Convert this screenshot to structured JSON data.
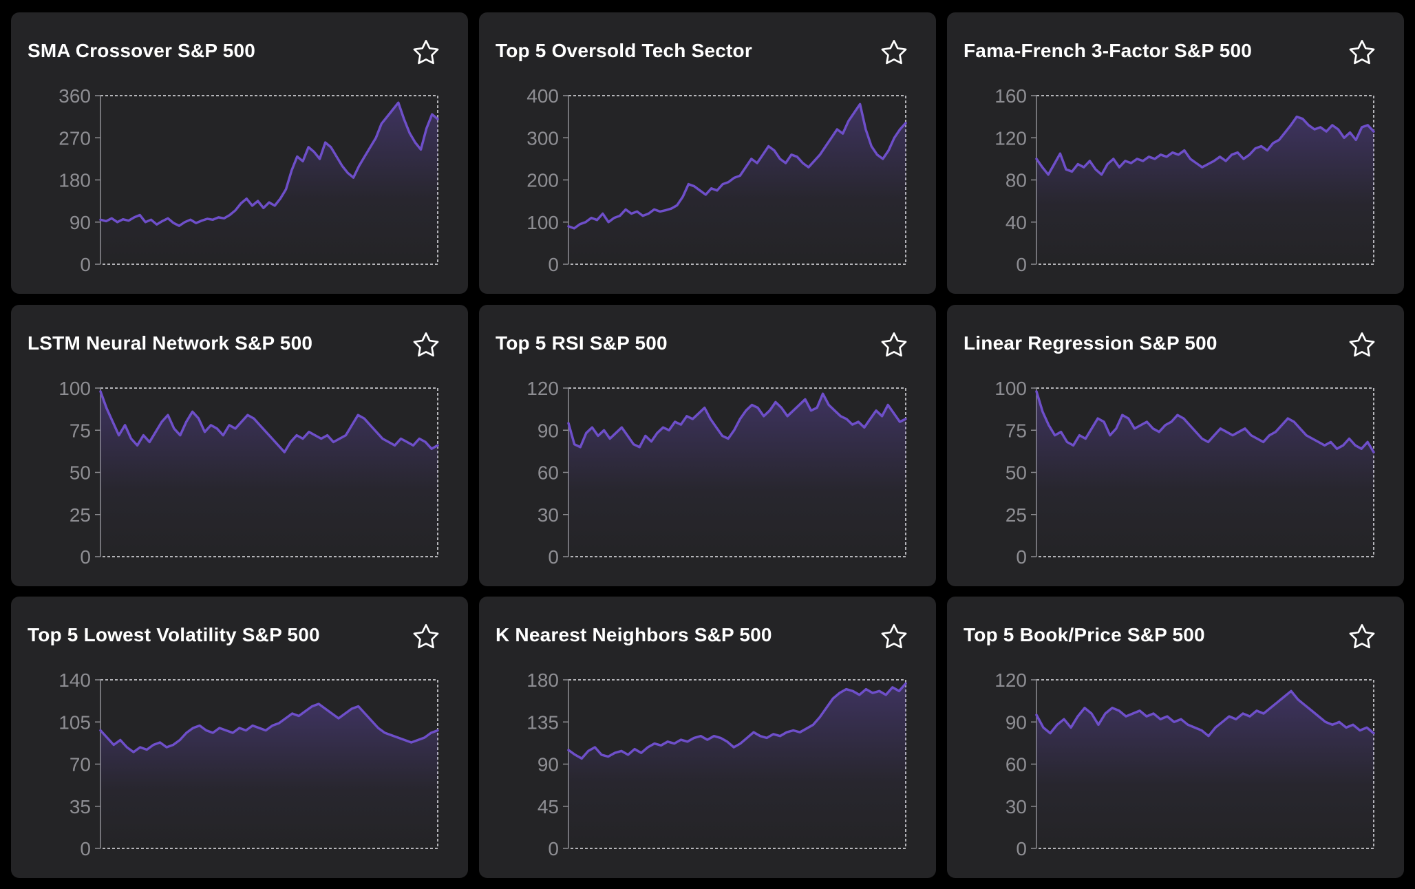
{
  "colors": {
    "background": "#000000",
    "card": "#242426",
    "line": "#6e4fc9",
    "axis": "#8e8e93",
    "title": "#ffffff"
  },
  "icons": {
    "favorite": "star-icon"
  },
  "cards": [
    {
      "title": "SMA Crossover S&P 500",
      "chart_data": {
        "type": "area",
        "ylim": [
          0,
          360
        ],
        "yticks": [
          0,
          90,
          180,
          270,
          360
        ],
        "grid": false,
        "values": [
          95,
          92,
          98,
          90,
          96,
          93,
          100,
          105,
          90,
          95,
          85,
          92,
          98,
          88,
          82,
          90,
          95,
          88,
          93,
          97,
          95,
          100,
          98,
          105,
          115,
          130,
          140,
          125,
          135,
          120,
          132,
          125,
          140,
          160,
          200,
          230,
          220,
          250,
          240,
          225,
          260,
          250,
          230,
          210,
          195,
          185,
          210,
          230,
          250,
          270,
          300,
          315,
          330,
          345,
          310,
          280,
          260,
          245,
          290,
          320,
          310
        ]
      }
    },
    {
      "title": "Top 5 Oversold Tech Sector",
      "chart_data": {
        "type": "area",
        "ylim": [
          0,
          400
        ],
        "yticks": [
          0,
          100,
          200,
          300,
          400
        ],
        "grid": false,
        "values": [
          90,
          85,
          95,
          100,
          110,
          105,
          120,
          100,
          110,
          115,
          130,
          120,
          125,
          115,
          120,
          130,
          125,
          128,
          132,
          140,
          160,
          190,
          185,
          175,
          165,
          180,
          175,
          190,
          195,
          205,
          210,
          230,
          250,
          240,
          260,
          280,
          270,
          250,
          240,
          260,
          255,
          240,
          230,
          245,
          260,
          280,
          300,
          320,
          310,
          340,
          360,
          380,
          320,
          280,
          260,
          250,
          270,
          300,
          320,
          335
        ]
      }
    },
    {
      "title": "Fama-French 3-Factor S&P 500",
      "chart_data": {
        "type": "area",
        "ylim": [
          0,
          160
        ],
        "yticks": [
          0,
          40,
          80,
          120,
          160
        ],
        "grid": false,
        "values": [
          100,
          92,
          85,
          95,
          105,
          90,
          88,
          95,
          92,
          98,
          90,
          85,
          95,
          100,
          92,
          98,
          96,
          100,
          98,
          102,
          100,
          104,
          102,
          106,
          104,
          108,
          100,
          96,
          92,
          95,
          98,
          102,
          98,
          104,
          106,
          100,
          104,
          110,
          112,
          108,
          115,
          118,
          125,
          132,
          140,
          138,
          132,
          128,
          130,
          126,
          132,
          128,
          120,
          125,
          118,
          130,
          132,
          126
        ]
      }
    },
    {
      "title": "LSTM Neural Network S&P 500",
      "chart_data": {
        "type": "area",
        "ylim": [
          0,
          100
        ],
        "yticks": [
          0,
          25,
          50,
          75,
          100
        ],
        "grid": false,
        "values": [
          98,
          88,
          80,
          72,
          78,
          70,
          66,
          72,
          68,
          74,
          80,
          84,
          76,
          72,
          80,
          86,
          82,
          74,
          78,
          76,
          72,
          78,
          76,
          80,
          84,
          82,
          78,
          74,
          70,
          66,
          62,
          68,
          72,
          70,
          74,
          72,
          70,
          72,
          68,
          70,
          72,
          78,
          84,
          82,
          78,
          74,
          70,
          68,
          66,
          70,
          68,
          66,
          70,
          68,
          64,
          66
        ]
      }
    },
    {
      "title": "Top 5 RSI S&P 500",
      "chart_data": {
        "type": "area",
        "ylim": [
          0,
          120
        ],
        "yticks": [
          0,
          30,
          60,
          90,
          120
        ],
        "grid": false,
        "values": [
          95,
          80,
          78,
          88,
          92,
          86,
          90,
          84,
          88,
          92,
          86,
          80,
          78,
          86,
          82,
          88,
          92,
          90,
          96,
          94,
          100,
          98,
          102,
          106,
          98,
          92,
          86,
          84,
          90,
          98,
          104,
          108,
          106,
          100,
          104,
          110,
          106,
          100,
          104,
          108,
          112,
          104,
          106,
          116,
          108,
          104,
          100,
          98,
          94,
          96,
          92,
          98,
          104,
          100,
          108,
          102,
          96,
          98
        ]
      }
    },
    {
      "title": "Linear Regression S&P 500",
      "chart_data": {
        "type": "area",
        "ylim": [
          0,
          100
        ],
        "yticks": [
          0,
          25,
          50,
          75,
          100
        ],
        "grid": false,
        "values": [
          98,
          86,
          78,
          72,
          74,
          68,
          66,
          72,
          70,
          76,
          82,
          80,
          72,
          76,
          84,
          82,
          76,
          78,
          80,
          76,
          74,
          78,
          80,
          84,
          82,
          78,
          74,
          70,
          68,
          72,
          76,
          74,
          72,
          74,
          76,
          72,
          70,
          68,
          72,
          74,
          78,
          82,
          80,
          76,
          72,
          70,
          68,
          66,
          68,
          64,
          66,
          70,
          66,
          64,
          68,
          62
        ]
      }
    },
    {
      "title": "Top 5 Lowest Volatility S&P 500",
      "chart_data": {
        "type": "area",
        "ylim": [
          0,
          140
        ],
        "yticks": [
          0,
          35,
          70,
          105,
          140
        ],
        "grid": false,
        "values": [
          98,
          92,
          86,
          90,
          84,
          80,
          84,
          82,
          86,
          88,
          84,
          86,
          90,
          96,
          100,
          102,
          98,
          96,
          100,
          98,
          96,
          100,
          98,
          102,
          100,
          98,
          102,
          104,
          108,
          112,
          110,
          114,
          118,
          120,
          116,
          112,
          108,
          112,
          116,
          118,
          112,
          106,
          100,
          96,
          94,
          92,
          90,
          88,
          90,
          92,
          96,
          98
        ]
      }
    },
    {
      "title": "K Nearest Neighbors S&P 500",
      "chart_data": {
        "type": "area",
        "ylim": [
          0,
          180
        ],
        "yticks": [
          0,
          45,
          90,
          135,
          180
        ],
        "grid": false,
        "values": [
          105,
          100,
          96,
          104,
          108,
          100,
          98,
          102,
          104,
          100,
          106,
          102,
          108,
          112,
          110,
          114,
          112,
          116,
          114,
          118,
          120,
          116,
          120,
          118,
          114,
          108,
          112,
          118,
          124,
          120,
          118,
          122,
          120,
          124,
          126,
          124,
          128,
          132,
          140,
          150,
          160,
          166,
          170,
          168,
          164,
          170,
          166,
          168,
          164,
          172,
          168,
          176
        ]
      }
    },
    {
      "title": "Top 5 Book/Price S&P 500",
      "chart_data": {
        "type": "area",
        "ylim": [
          0,
          120
        ],
        "yticks": [
          0,
          30,
          60,
          90,
          120
        ],
        "grid": false,
        "values": [
          95,
          86,
          82,
          88,
          92,
          86,
          94,
          100,
          96,
          88,
          96,
          100,
          98,
          94,
          96,
          98,
          94,
          96,
          92,
          94,
          90,
          92,
          88,
          86,
          84,
          80,
          86,
          90,
          94,
          92,
          96,
          94,
          98,
          96,
          100,
          104,
          108,
          112,
          106,
          102,
          98,
          94,
          90,
          88,
          90,
          86,
          88,
          84,
          86,
          82
        ]
      }
    }
  ]
}
